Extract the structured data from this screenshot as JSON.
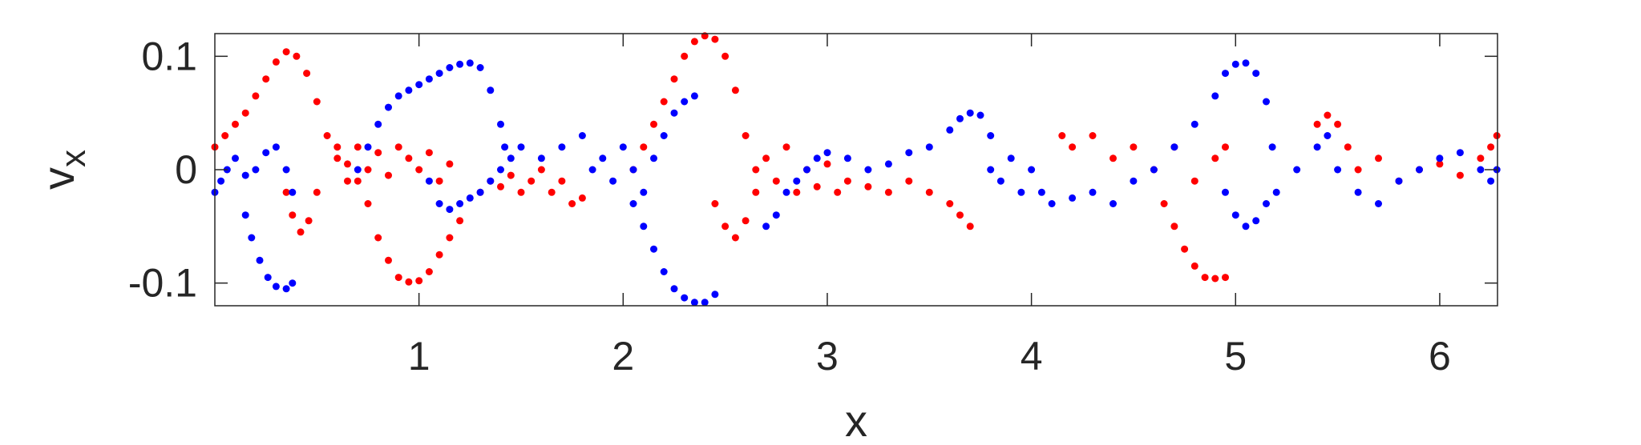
{
  "chart_data": {
    "type": "scatter",
    "xlabel": "x",
    "ylabel": "v",
    "ylabel_subscript": "x",
    "xlim": [
      0,
      6.283
    ],
    "ylim": [
      -0.12,
      0.12
    ],
    "xticks": [
      1,
      2,
      3,
      4,
      5,
      6
    ],
    "xtick_labels": [
      "1",
      "2",
      "3",
      "4",
      "5",
      "6"
    ],
    "yticks": [
      -0.1,
      0,
      0.1
    ],
    "ytick_labels": [
      "-0.1",
      "0",
      "0.1"
    ],
    "grid": false,
    "box": true,
    "series": [
      {
        "color": "#ff0000",
        "points": [
          [
            0.0,
            0.02
          ],
          [
            0.05,
            0.03
          ],
          [
            0.1,
            0.04
          ],
          [
            0.15,
            0.05
          ],
          [
            0.2,
            0.065
          ],
          [
            0.25,
            0.08
          ],
          [
            0.3,
            0.095
          ],
          [
            0.35,
            0.104
          ],
          [
            0.4,
            0.1
          ],
          [
            0.45,
            0.085
          ],
          [
            0.5,
            0.06
          ],
          [
            0.55,
            0.03
          ],
          [
            0.35,
            -0.02
          ],
          [
            0.38,
            -0.04
          ],
          [
            0.42,
            -0.055
          ],
          [
            0.46,
            -0.045
          ],
          [
            0.5,
            -0.02
          ],
          [
            0.6,
            0.02
          ],
          [
            0.65,
            0.005
          ],
          [
            0.7,
            -0.01
          ],
          [
            0.75,
            -0.03
          ],
          [
            0.8,
            -0.06
          ],
          [
            0.85,
            -0.08
          ],
          [
            0.9,
            -0.095
          ],
          [
            0.95,
            -0.099
          ],
          [
            1.0,
            -0.098
          ],
          [
            1.05,
            -0.09
          ],
          [
            1.1,
            -0.075
          ],
          [
            1.15,
            -0.06
          ],
          [
            1.2,
            -0.045
          ],
          [
            0.6,
            0.01
          ],
          [
            0.65,
            -0.01
          ],
          [
            0.7,
            0.02
          ],
          [
            0.75,
            0.0
          ],
          [
            0.8,
            0.015
          ],
          [
            0.85,
            -0.005
          ],
          [
            0.9,
            0.02
          ],
          [
            0.95,
            0.01
          ],
          [
            1.0,
            0.0
          ],
          [
            1.05,
            0.015
          ],
          [
            1.1,
            -0.01
          ],
          [
            1.15,
            0.005
          ],
          [
            1.3,
            -0.02
          ],
          [
            1.35,
            -0.01
          ],
          [
            1.4,
            -0.015
          ],
          [
            1.45,
            -0.005
          ],
          [
            1.5,
            -0.02
          ],
          [
            1.55,
            -0.01
          ],
          [
            1.6,
            0.0
          ],
          [
            1.65,
            -0.02
          ],
          [
            1.7,
            -0.01
          ],
          [
            1.75,
            -0.03
          ],
          [
            1.8,
            -0.025
          ],
          [
            2.05,
            0.0
          ],
          [
            2.1,
            0.02
          ],
          [
            2.15,
            0.04
          ],
          [
            2.2,
            0.06
          ],
          [
            2.25,
            0.08
          ],
          [
            2.3,
            0.1
          ],
          [
            2.35,
            0.113
          ],
          [
            2.4,
            0.118
          ],
          [
            2.45,
            0.115
          ],
          [
            2.5,
            0.1
          ],
          [
            2.55,
            0.07
          ],
          [
            2.6,
            0.03
          ],
          [
            2.65,
            0.0
          ],
          [
            2.45,
            -0.03
          ],
          [
            2.5,
            -0.05
          ],
          [
            2.55,
            -0.06
          ],
          [
            2.6,
            -0.045
          ],
          [
            2.65,
            -0.02
          ],
          [
            2.7,
            0.01
          ],
          [
            2.75,
            -0.01
          ],
          [
            2.8,
            0.02
          ],
          [
            2.85,
            -0.02
          ],
          [
            2.9,
            0.0
          ],
          [
            2.95,
            -0.015
          ],
          [
            3.0,
            0.005
          ],
          [
            3.05,
            -0.02
          ],
          [
            3.1,
            -0.01
          ],
          [
            3.2,
            -0.015
          ],
          [
            3.3,
            -0.02
          ],
          [
            3.4,
            -0.01
          ],
          [
            3.5,
            -0.02
          ],
          [
            3.6,
            -0.03
          ],
          [
            3.65,
            -0.04
          ],
          [
            3.7,
            -0.05
          ],
          [
            4.15,
            0.03
          ],
          [
            4.2,
            0.02
          ],
          [
            4.3,
            0.03
          ],
          [
            4.4,
            0.01
          ],
          [
            4.5,
            0.02
          ],
          [
            4.6,
            0.0
          ],
          [
            4.7,
            0.02
          ],
          [
            4.8,
            -0.01
          ],
          [
            4.9,
            0.01
          ],
          [
            4.95,
            0.02
          ],
          [
            4.65,
            -0.03
          ],
          [
            4.7,
            -0.05
          ],
          [
            4.75,
            -0.07
          ],
          [
            4.8,
            -0.085
          ],
          [
            4.85,
            -0.095
          ],
          [
            4.9,
            -0.096
          ],
          [
            4.95,
            -0.095
          ],
          [
            5.4,
            0.04
          ],
          [
            5.45,
            0.048
          ],
          [
            5.5,
            0.04
          ],
          [
            5.55,
            0.02
          ],
          [
            5.6,
            0.0
          ],
          [
            5.7,
            0.01
          ],
          [
            5.8,
            -0.01
          ],
          [
            5.9,
            0.0
          ],
          [
            6.0,
            0.005
          ],
          [
            6.1,
            -0.005
          ],
          [
            6.2,
            0.01
          ],
          [
            6.25,
            0.02
          ],
          [
            6.28,
            0.03
          ]
        ]
      },
      {
        "color": "#0000ff",
        "points": [
          [
            0.0,
            -0.02
          ],
          [
            0.03,
            -0.01
          ],
          [
            0.06,
            0.0
          ],
          [
            0.1,
            0.01
          ],
          [
            0.15,
            -0.005
          ],
          [
            0.2,
            0.0
          ],
          [
            0.25,
            0.015
          ],
          [
            0.3,
            0.02
          ],
          [
            0.35,
            0.0
          ],
          [
            0.38,
            -0.02
          ],
          [
            0.15,
            -0.04
          ],
          [
            0.18,
            -0.06
          ],
          [
            0.22,
            -0.08
          ],
          [
            0.26,
            -0.095
          ],
          [
            0.3,
            -0.103
          ],
          [
            0.35,
            -0.105
          ],
          [
            0.38,
            -0.1
          ],
          [
            0.7,
            0.0
          ],
          [
            0.75,
            0.02
          ],
          [
            0.8,
            0.04
          ],
          [
            0.85,
            0.055
          ],
          [
            0.9,
            0.065
          ],
          [
            0.95,
            0.07
          ],
          [
            1.0,
            0.075
          ],
          [
            1.05,
            0.08
          ],
          [
            1.1,
            0.085
          ],
          [
            1.15,
            0.09
          ],
          [
            1.2,
            0.093
          ],
          [
            1.25,
            0.094
          ],
          [
            1.3,
            0.09
          ],
          [
            1.35,
            0.07
          ],
          [
            1.4,
            0.04
          ],
          [
            1.42,
            0.02
          ],
          [
            1.05,
            -0.01
          ],
          [
            1.1,
            -0.03
          ],
          [
            1.15,
            -0.035
          ],
          [
            1.2,
            -0.03
          ],
          [
            1.25,
            -0.025
          ],
          [
            1.3,
            -0.02
          ],
          [
            1.35,
            -0.01
          ],
          [
            1.4,
            0.0
          ],
          [
            1.45,
            0.01
          ],
          [
            1.5,
            0.02
          ],
          [
            1.6,
            0.01
          ],
          [
            1.7,
            0.02
          ],
          [
            1.8,
            0.03
          ],
          [
            1.85,
            0.0
          ],
          [
            1.9,
            0.01
          ],
          [
            1.95,
            -0.01
          ],
          [
            2.0,
            0.02
          ],
          [
            2.05,
            0.0
          ],
          [
            2.1,
            -0.02
          ],
          [
            2.15,
            0.01
          ],
          [
            2.2,
            0.03
          ],
          [
            2.25,
            0.05
          ],
          [
            2.3,
            0.06
          ],
          [
            2.35,
            0.065
          ],
          [
            2.05,
            -0.03
          ],
          [
            2.1,
            -0.05
          ],
          [
            2.15,
            -0.07
          ],
          [
            2.2,
            -0.09
          ],
          [
            2.25,
            -0.105
          ],
          [
            2.3,
            -0.113
          ],
          [
            2.35,
            -0.117
          ],
          [
            2.4,
            -0.117
          ],
          [
            2.45,
            -0.11
          ],
          [
            2.7,
            -0.05
          ],
          [
            2.75,
            -0.04
          ],
          [
            2.8,
            -0.02
          ],
          [
            2.85,
            -0.01
          ],
          [
            2.9,
            0.0
          ],
          [
            2.95,
            0.01
          ],
          [
            3.0,
            0.015
          ],
          [
            3.1,
            0.01
          ],
          [
            3.2,
            0.0
          ],
          [
            3.3,
            0.005
          ],
          [
            3.4,
            0.015
          ],
          [
            3.5,
            0.02
          ],
          [
            3.6,
            0.035
          ],
          [
            3.65,
            0.045
          ],
          [
            3.7,
            0.05
          ],
          [
            3.75,
            0.048
          ],
          [
            3.8,
            0.03
          ],
          [
            3.8,
            0.0
          ],
          [
            3.85,
            -0.01
          ],
          [
            3.9,
            0.01
          ],
          [
            3.95,
            -0.02
          ],
          [
            4.0,
            0.0
          ],
          [
            4.05,
            -0.02
          ],
          [
            4.1,
            -0.03
          ],
          [
            4.2,
            -0.025
          ],
          [
            4.3,
            -0.02
          ],
          [
            4.4,
            -0.03
          ],
          [
            4.5,
            -0.01
          ],
          [
            4.6,
            0.0
          ],
          [
            4.7,
            0.02
          ],
          [
            4.8,
            0.04
          ],
          [
            4.9,
            0.065
          ],
          [
            4.95,
            0.085
          ],
          [
            5.0,
            0.093
          ],
          [
            5.05,
            0.094
          ],
          [
            5.1,
            0.085
          ],
          [
            5.15,
            0.06
          ],
          [
            5.18,
            0.02
          ],
          [
            4.95,
            -0.02
          ],
          [
            5.0,
            -0.04
          ],
          [
            5.05,
            -0.05
          ],
          [
            5.1,
            -0.045
          ],
          [
            5.15,
            -0.03
          ],
          [
            5.2,
            -0.02
          ],
          [
            5.3,
            0.0
          ],
          [
            5.4,
            0.02
          ],
          [
            5.45,
            0.03
          ],
          [
            5.5,
            0.0
          ],
          [
            5.6,
            -0.02
          ],
          [
            5.7,
            -0.03
          ],
          [
            5.8,
            -0.01
          ],
          [
            5.9,
            0.0
          ],
          [
            6.0,
            0.01
          ],
          [
            6.1,
            0.015
          ],
          [
            6.2,
            0.0
          ],
          [
            6.25,
            -0.01
          ],
          [
            6.28,
            0.0
          ]
        ]
      }
    ]
  }
}
